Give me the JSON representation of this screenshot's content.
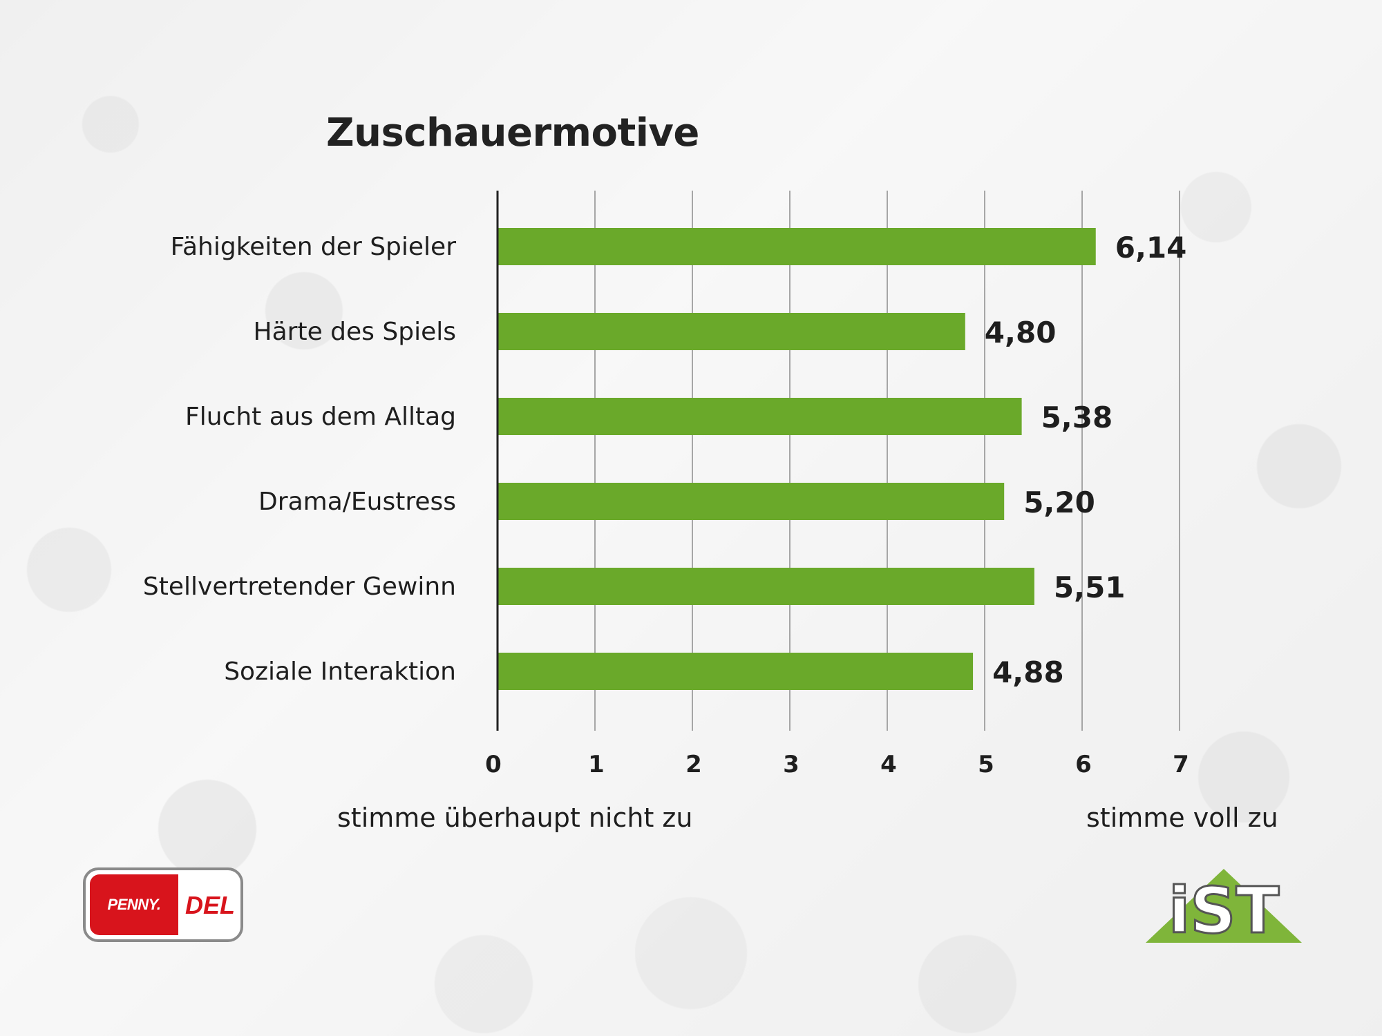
{
  "chart_data": {
    "type": "bar",
    "orientation": "horizontal",
    "title": "Zuschauermotive",
    "categories": [
      "Fähigkeiten der Spieler",
      "Härte des Spiels",
      "Flucht aus dem Alltag",
      "Drama/Eustress",
      "Stellvertretender Gewinn",
      "Soziale Interaktion"
    ],
    "values": [
      6.14,
      4.8,
      5.38,
      5.2,
      5.51,
      4.88
    ],
    "value_labels": [
      "6,14",
      "4,80",
      "5,38",
      "5,20",
      "5,51",
      "4,88"
    ],
    "xlim": [
      0,
      7
    ],
    "xticks": [
      "0",
      "1",
      "2",
      "3",
      "4",
      "5",
      "6",
      "7"
    ],
    "xlabel_left": "stimme überhaupt nicht zu",
    "xlabel_right": "stimme voll zu",
    "grid": true,
    "bar_color": "#6aa92a"
  },
  "logos": {
    "penny_text": "PENNY.",
    "del_text": "DEL",
    "ist_text": "iST"
  }
}
